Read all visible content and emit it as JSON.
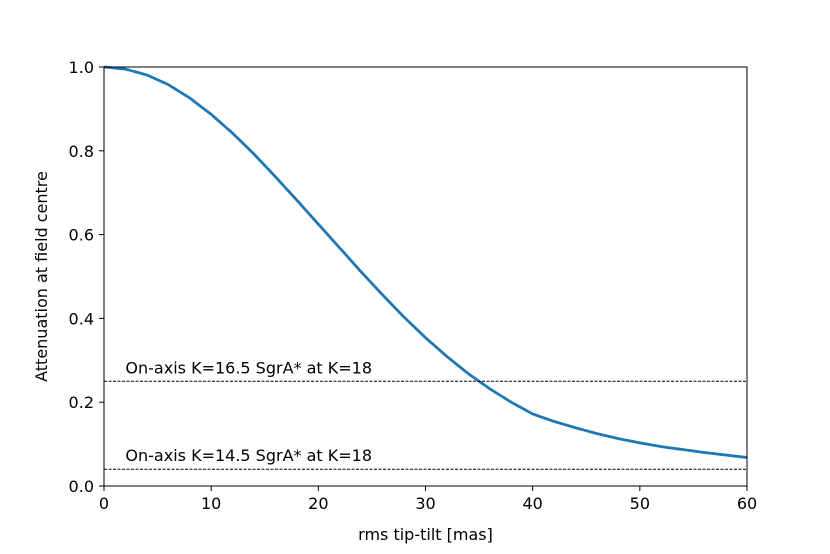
{
  "chart_data": {
    "type": "line",
    "title": "",
    "xlabel": "rms tip-tilt [mas]",
    "ylabel": "Attenuation at field centre",
    "xlim": [
      0,
      60
    ],
    "ylim": [
      0.0,
      1.0
    ],
    "xticks": [
      0,
      10,
      20,
      30,
      40,
      50,
      60
    ],
    "xtick_labels": [
      "0",
      "10",
      "20",
      "30",
      "40",
      "50",
      "60"
    ],
    "yticks": [
      0.0,
      0.2,
      0.4,
      0.6,
      0.8,
      1.0
    ],
    "ytick_labels": [
      "0.0",
      "0.2",
      "0.4",
      "0.6",
      "0.8",
      "1.0"
    ],
    "grid": false,
    "series": [
      {
        "name": "attenuation",
        "color": "#1f77b4",
        "x": [
          0,
          2,
          4,
          6,
          8,
          10,
          12,
          14,
          16,
          18,
          20,
          22,
          24,
          26,
          28,
          30,
          32,
          34,
          36,
          37.2,
          38,
          40,
          42,
          44,
          46,
          48,
          50,
          52,
          54,
          56,
          58,
          60
        ],
        "y": [
          1.0,
          0.995,
          0.981,
          0.958,
          0.926,
          0.887,
          0.842,
          0.792,
          0.738,
          0.682,
          0.625,
          0.568,
          0.511,
          0.456,
          0.403,
          0.354,
          0.309,
          0.268,
          0.232,
          0.25,
          0.2,
          0.172,
          0.154,
          0.139,
          0.125,
          0.113,
          0.103,
          0.094,
          0.087,
          0.08,
          0.074,
          0.068
        ]
      }
    ],
    "hlines": [
      {
        "y": 0.25,
        "label": "On-axis K=16.5 SgrA* at K=18",
        "style": "dashed",
        "color": "#000000"
      },
      {
        "y": 0.04,
        "label": "On-axis K=14.5 SgrA* at K=18",
        "style": "dashed",
        "color": "#000000"
      }
    ]
  }
}
